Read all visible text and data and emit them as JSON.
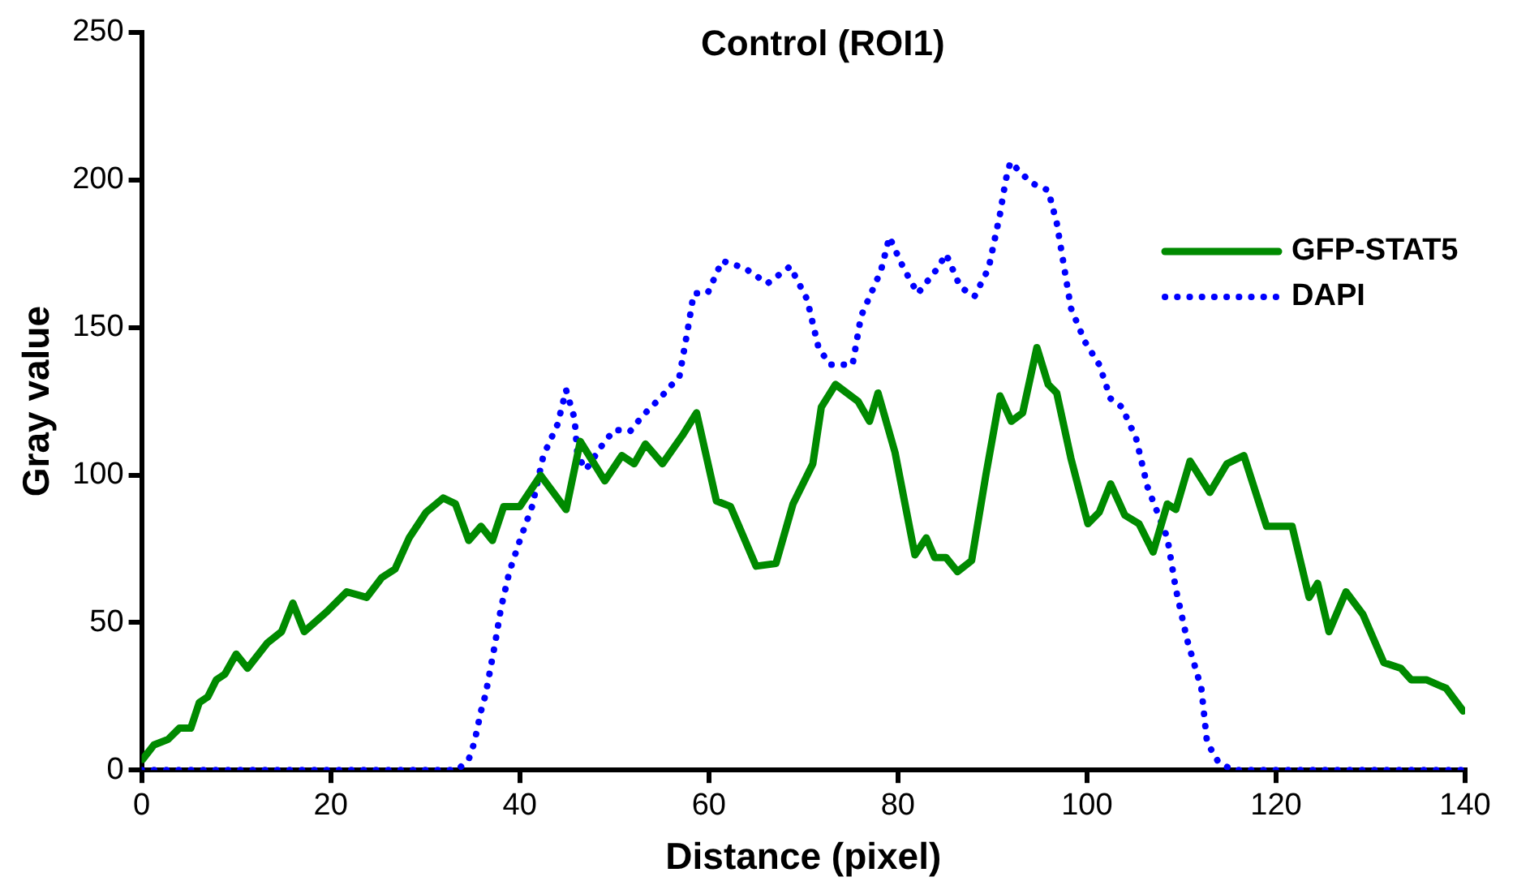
{
  "chart_data": {
    "type": "line",
    "title": "Control (ROI1)",
    "xlabel": "Distance (pixel)",
    "ylabel": "Gray value",
    "xlim": [
      0,
      140
    ],
    "xticks": [
      0,
      20,
      40,
      60,
      80,
      100,
      120,
      140
    ],
    "ylim": [
      0,
      250
    ],
    "yticks": [
      0,
      50,
      100,
      150,
      200,
      250
    ],
    "grid": false,
    "legend": "top right",
    "marker": "none",
    "series": [
      {
        "name": "GFP-STAT5",
        "color": "#008a00",
        "line_style": "solid",
        "x": [
          0.1,
          1.3,
          2.8,
          4.0,
          5.2,
          6.1,
          7.0,
          7.9,
          8.8,
          10.0,
          11.2,
          13.3,
          14.8,
          16.0,
          17.2,
          19.6,
          21.7,
          23.8,
          25.4,
          26.8,
          28.3,
          30.1,
          31.9,
          33.2,
          34.6,
          35.9,
          37.1,
          38.3,
          40.0,
          42.2,
          44.9,
          46.4,
          49.0,
          50.8,
          52.1,
          53.3,
          55.1,
          57.2,
          58.7,
          60.8,
          62.3,
          65.0,
          67.1,
          68.9,
          71.0,
          71.9,
          73.4,
          75.8,
          77.0,
          77.9,
          79.7,
          81.8,
          83.0,
          83.9,
          85.1,
          86.3,
          87.8,
          89.3,
          90.8,
          92.0,
          93.2,
          94.7,
          95.9,
          96.8,
          98.3,
          100.1,
          101.3,
          102.5,
          104.0,
          105.5,
          107.0,
          108.5,
          109.4,
          110.9,
          113.0,
          114.8,
          116.6,
          119.0,
          121.7,
          123.5,
          124.4,
          125.6,
          127.4,
          129.2,
          131.4,
          133.2,
          134.3,
          135.9,
          138.0,
          139.8
        ],
        "values": [
          3.6,
          8.5,
          10.4,
          14.2,
          14.2,
          22.9,
          24.8,
          30.6,
          32.5,
          39.3,
          34.5,
          43.1,
          46.9,
          56.6,
          46.9,
          53.7,
          60.4,
          58.5,
          65.2,
          68.1,
          78.7,
          87.4,
          92.2,
          90.2,
          77.8,
          82.6,
          77.8,
          89.3,
          89.3,
          99.9,
          88.3,
          111.4,
          98.0,
          106.6,
          103.8,
          110.5,
          103.8,
          113.4,
          121.1,
          91.2,
          89.3,
          69.1,
          70.0,
          90.2,
          103.8,
          123,
          130.7,
          124.9,
          118.2,
          127.8,
          107.6,
          72.9,
          78.7,
          72.0,
          72.0,
          67.2,
          71.0,
          99.9,
          126.8,
          118.2,
          121.1,
          143.2,
          130.7,
          127.8,
          105.7,
          83.5,
          87.4,
          97.0,
          86.4,
          83.5,
          73.9,
          90.2,
          88.3,
          104.7,
          94.1,
          103.8,
          106.6,
          82.6,
          82.6,
          58.5,
          63.3,
          46.9,
          60.4,
          52.7,
          36.4,
          34.5,
          30.6,
          30.6,
          27.7,
          20.0
        ]
      },
      {
        "name": "DAPI",
        "color": "#0000ff",
        "line_style": "dotted",
        "x": [
          0,
          33.4,
          34.6,
          35.2,
          35.9,
          36.4,
          37.4,
          38.0,
          38.9,
          40.1,
          41.3,
          42.5,
          44.0,
          44.9,
          45.8,
          46.1,
          47.0,
          48.8,
          50.0,
          51.7,
          53.0,
          54.8,
          56.9,
          57.8,
          58.4,
          59.9,
          61.4,
          63.8,
          66.2,
          68.6,
          70.4,
          71.6,
          72.8,
          75.2,
          76.1,
          78.2,
          79.1,
          80.6,
          82.1,
          84.2,
          85.1,
          86.6,
          88.1,
          89.6,
          90.8,
          91.4,
          91.9,
          94.1,
          95.9,
          96.8,
          97.4,
          98.3,
          99.8,
          101.3,
          102.5,
          103.7,
          105.2,
          106.4,
          108.5,
          109.4,
          110.6,
          112.1,
          112.7,
          113.9,
          115.4,
          140
        ],
        "values": [
          0,
          0,
          3.6,
          9.4,
          20,
          25.8,
          43.1,
          54.7,
          67.2,
          78.7,
          89.3,
          106.6,
          117.2,
          128.8,
          119.1,
          106.6,
          101.8,
          110.5,
          115.3,
          114.9,
          120.1,
          125.9,
          133.6,
          149.9,
          161.5,
          161.8,
          172.6,
          170.1,
          164.9,
          170.7,
          159.5,
          143.2,
          137.4,
          137.4,
          153.8,
          169.2,
          180.7,
          170.1,
          161.5,
          170.1,
          174.9,
          163.7,
          160.5,
          170.1,
          188.4,
          199.9,
          206.1,
          199.0,
          196.5,
          185.5,
          174.0,
          156.6,
          145.1,
          137.4,
          125.9,
          123.0,
          112.4,
          96.0,
          78.7,
          61.4,
          44.1,
          27.7,
          9.4,
          2.7,
          0,
          0
        ]
      }
    ]
  }
}
